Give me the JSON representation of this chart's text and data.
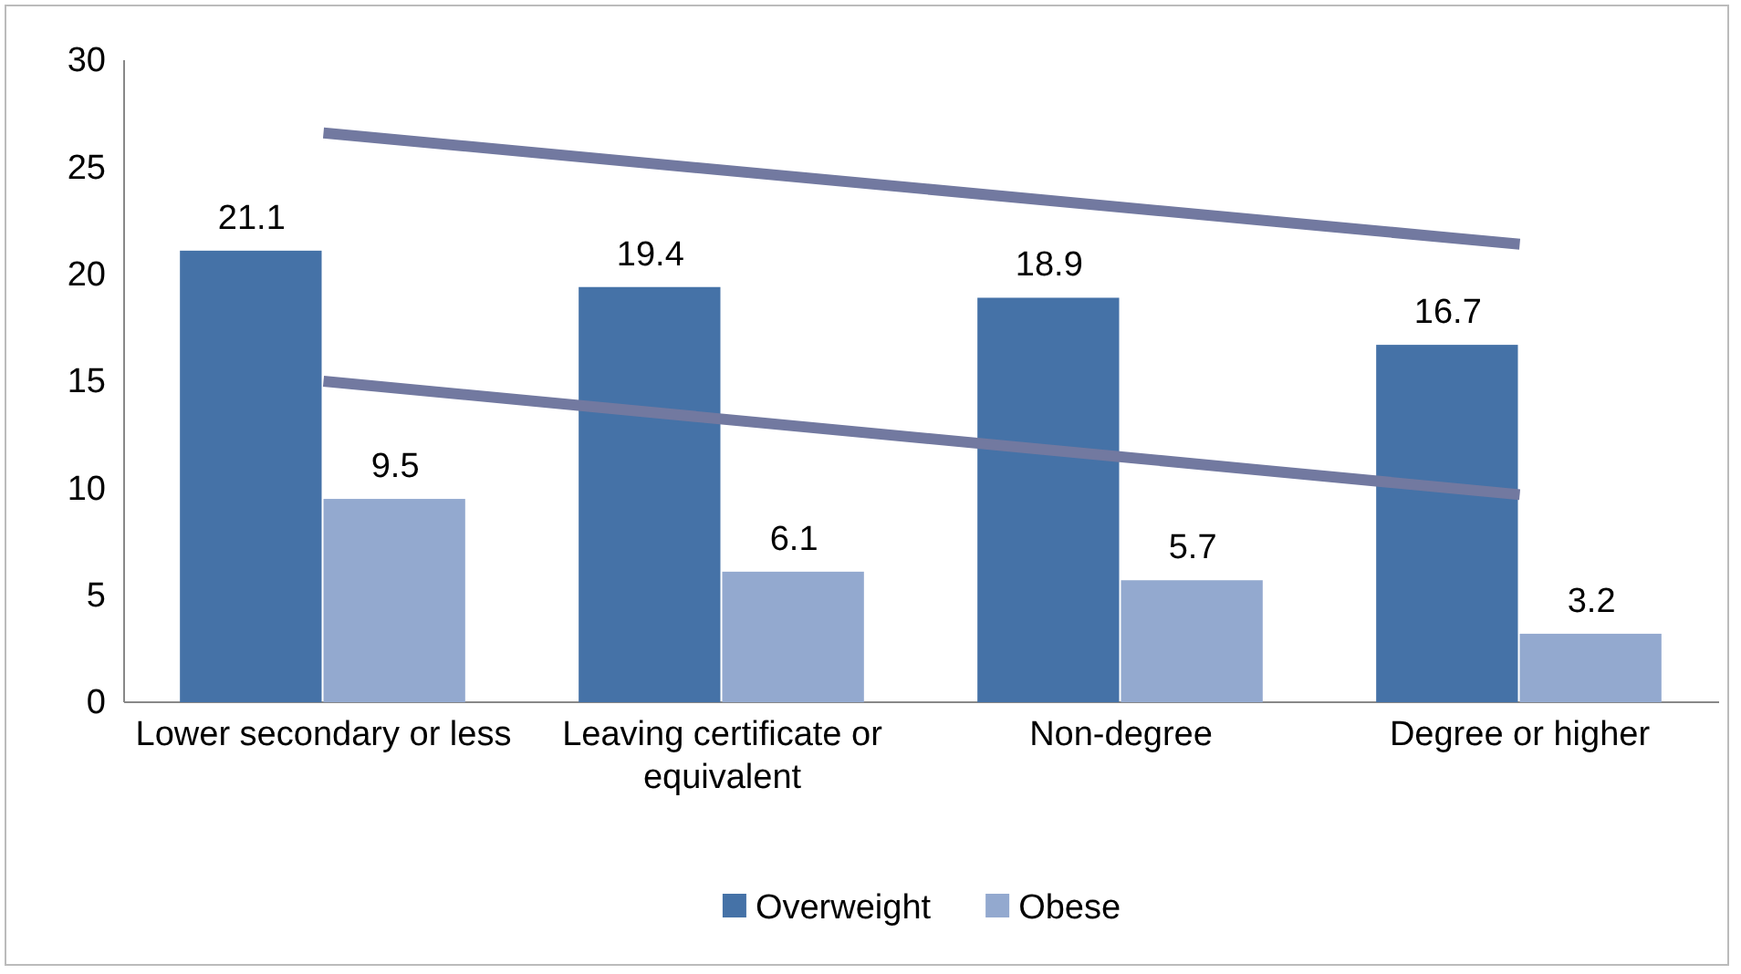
{
  "chart_data": {
    "type": "bar",
    "categories": [
      "Lower secondary or less",
      "Leaving certificate or equivalent",
      "Non-degree",
      "Degree or higher"
    ],
    "series": [
      {
        "name": "Overweight",
        "color": "#4572a7",
        "values": [
          21.1,
          19.4,
          18.9,
          16.7
        ],
        "value_labels": [
          "21.1",
          "19.4",
          "18.9",
          "16.7"
        ]
      },
      {
        "name": "Obese",
        "color": "#93a9cf",
        "values": [
          9.5,
          6.1,
          5.7,
          3.2
        ],
        "value_labels": [
          "9.5",
          "6.1",
          "5.7",
          "3.2"
        ]
      },
      {
        "type": "line",
        "color": "#7279a0",
        "x": [
          "Lower secondary or less",
          "Degree or higher"
        ],
        "values": [
          26.6,
          21.4
        ]
      },
      {
        "type": "line",
        "color": "#7279a0",
        "x": [
          "Lower secondary or less",
          "Degree or higher"
        ],
        "values": [
          15.0,
          9.7
        ]
      }
    ],
    "ylim": [
      0,
      30
    ],
    "yticks": [
      0,
      5,
      10,
      15,
      20,
      25,
      30
    ],
    "grid": false,
    "legend": "bottom"
  }
}
